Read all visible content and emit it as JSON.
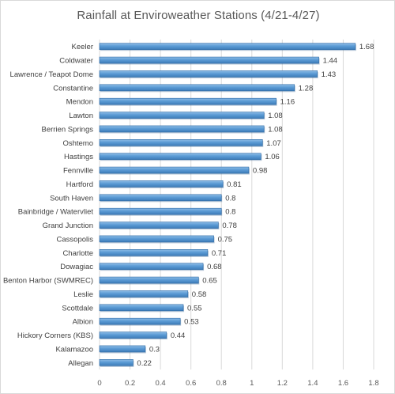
{
  "chart_data": {
    "type": "bar",
    "orientation": "horizontal",
    "title": "Rainfall at Enviroweather Stations (4/21-4/27)",
    "xlabel": "",
    "ylabel": "",
    "xlim": [
      0,
      1.8
    ],
    "ticks": [
      "0",
      "0.2",
      "0.4",
      "0.6",
      "0.8",
      "1",
      "1.2",
      "1.4",
      "1.6",
      "1.8"
    ],
    "grid": true,
    "legend": "none",
    "bar_color": "#5b9bd5",
    "categories": [
      "Keeler",
      "Coldwater",
      "Lawrence / Teapot Dome",
      "Constantine",
      "Mendon",
      "Lawton",
      "Berrien Springs",
      "Oshtemo",
      "Hastings",
      "Fennville",
      "Hartford",
      "South Haven",
      "Bainbridge / Watervliet",
      "Grand Junction",
      "Cassopolis",
      "Charlotte",
      "Dowagiac",
      "Benton Harbor (SWMREC)",
      "Leslie",
      "Scottdale",
      "Albion",
      "Hickory Corners (KBS)",
      "Kalamazoo",
      "Allegan"
    ],
    "values": [
      1.68,
      1.44,
      1.43,
      1.28,
      1.16,
      1.08,
      1.08,
      1.07,
      1.06,
      0.98,
      0.81,
      0.8,
      0.8,
      0.78,
      0.75,
      0.71,
      0.68,
      0.65,
      0.58,
      0.55,
      0.53,
      0.44,
      0.3,
      0.22
    ],
    "data_labels": [
      "1.68",
      "1.44",
      "1.43",
      "1.28",
      "1.16",
      "1.08",
      "1.08",
      "1.07",
      "1.06",
      "0.98",
      "0.81",
      "0.8",
      "0.8",
      "0.78",
      "0.75",
      "0.71",
      "0.68",
      "0.65",
      "0.58",
      "0.55",
      "0.53",
      "0.44",
      "0.3",
      "0.22"
    ]
  }
}
